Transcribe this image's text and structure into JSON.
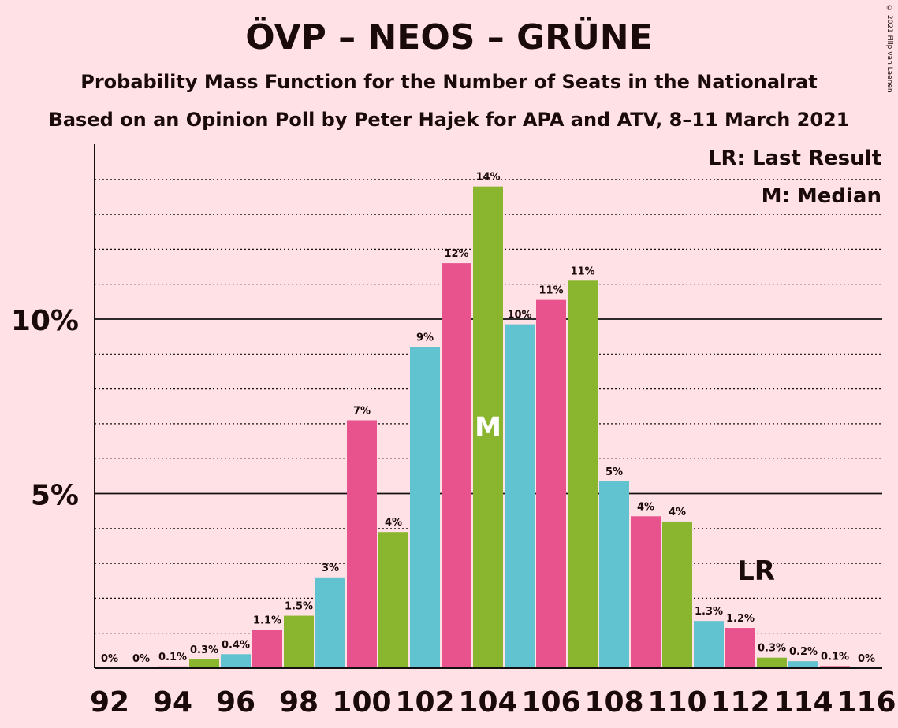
{
  "title": "ÖVP – NEOS – GRÜNE",
  "subtitle": "Probability Mass Function for the Number of Seats in the Nationalrat",
  "subtitle2": "Based on an Opinion Poll by Peter Hajek for APA and ATV, 8–11 March 2021",
  "copyright": "© 2021 Filip van Laenen",
  "legend": {
    "lr": "LR: Last Result",
    "median": "M: Median"
  },
  "colors": {
    "background": "#FFE1E6",
    "pink": "#E8538E",
    "green": "#8AB62F",
    "blue": "#62C3D0"
  },
  "chart_data": {
    "type": "bar",
    "categories": [
      92,
      93,
      94,
      95,
      96,
      97,
      98,
      99,
      100,
      101,
      102,
      103,
      104,
      105,
      106,
      107,
      108,
      109,
      110,
      111,
      112,
      113,
      114,
      115,
      116
    ],
    "values": [
      0,
      0,
      0.05,
      0.25,
      0.4,
      1.1,
      1.5,
      2.6,
      7.1,
      3.9,
      9.2,
      11.6,
      13.8,
      9.85,
      10.55,
      11.1,
      5.35,
      4.35,
      4.2,
      1.35,
      1.15,
      0.3,
      0.2,
      0.06,
      0
    ],
    "labels": [
      "0%",
      "0%",
      "0.1%",
      "0.3%",
      "0.4%",
      "1.1%",
      "1.5%",
      "3%",
      "7%",
      "4%",
      "9%",
      "12%",
      "14%",
      "10%",
      "11%",
      "11%",
      "5%",
      "4%",
      "4%",
      "1.3%",
      "1.2%",
      "0.3%",
      "0.2%",
      "0.1%",
      "0%"
    ],
    "x_tick_labels": [
      "92",
      "94",
      "96",
      "98",
      "100",
      "102",
      "104",
      "106",
      "108",
      "110",
      "112",
      "114",
      "116"
    ],
    "y_tick_labels": [
      "5%",
      "10%"
    ],
    "ylim": [
      0,
      15
    ],
    "median": 104,
    "median_label": "M",
    "last_result": 112,
    "last_result_label": "LR"
  }
}
